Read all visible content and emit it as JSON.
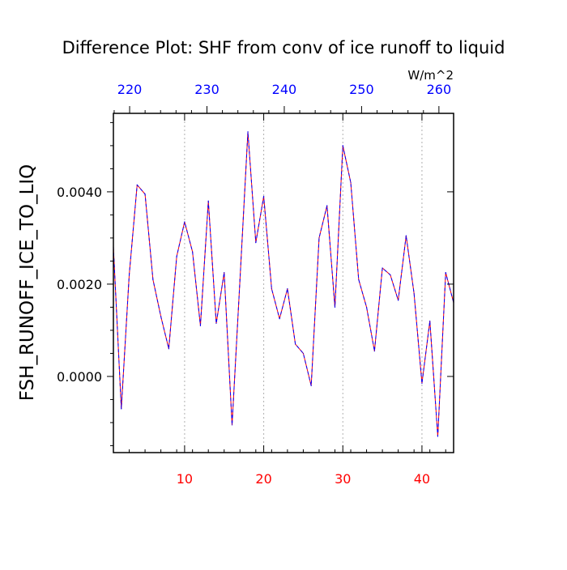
{
  "chart_data": {
    "type": "line",
    "title": "Difference Plot: SHF from conv of ice runoff to liquid",
    "ylabel": "FSH_RUNOFF_ICE_TO_LIQ",
    "top_axis_units": "W/m^2",
    "xlim": [
      1,
      44
    ],
    "ylim": [
      -0.00165,
      0.0057
    ],
    "x_ticks": [
      10,
      20,
      30,
      40
    ],
    "x_tick_labels": [
      "10",
      "20",
      "30",
      "40"
    ],
    "y_ticks": [
      0.0,
      0.002,
      0.004
    ],
    "y_tick_labels": [
      "0.0000",
      "0.0020",
      "0.0040"
    ],
    "top_ticks": [
      220,
      230,
      240,
      250,
      260
    ],
    "top_tick_labels": [
      "220",
      "230",
      "240",
      "250",
      "260"
    ],
    "top_xlim": [
      217.9,
      261.9
    ],
    "grid": "vertical dotted at bottom-axis ticks",
    "colors": {
      "bottom_tick_labels": "#ff0000",
      "top_tick_labels": "#0000ff",
      "series_line": "#ff0000",
      "series_dash": "#0000ff"
    },
    "series": [
      {
        "x": [
          1,
          2,
          3,
          4,
          5,
          6,
          7,
          8,
          9,
          10,
          11,
          12,
          13,
          14,
          15,
          16,
          17,
          18,
          19,
          20,
          21,
          22,
          23,
          24,
          25,
          26,
          27,
          28,
          29,
          30,
          31,
          32,
          33,
          34,
          35,
          36,
          37,
          38,
          39,
          40,
          41,
          42,
          43,
          44
        ],
        "values": [
          0.0028,
          -0.0007,
          0.0022,
          0.00415,
          0.00395,
          0.0021,
          0.0013,
          0.0006,
          0.0026,
          0.00335,
          0.0027,
          0.0011,
          0.0038,
          0.00115,
          0.00225,
          -0.00105,
          0.0021,
          0.0053,
          0.0029,
          0.0039,
          0.0019,
          0.00125,
          0.0019,
          0.0007,
          0.0005,
          -0.0002,
          0.003,
          0.0037,
          0.0015,
          0.005,
          0.0042,
          0.0021,
          0.0015,
          0.00055,
          0.00235,
          0.0022,
          0.00165,
          0.00305,
          0.0018,
          -0.00015,
          0.0012,
          -0.0013,
          0.00225,
          0.0016
        ]
      }
    ]
  }
}
